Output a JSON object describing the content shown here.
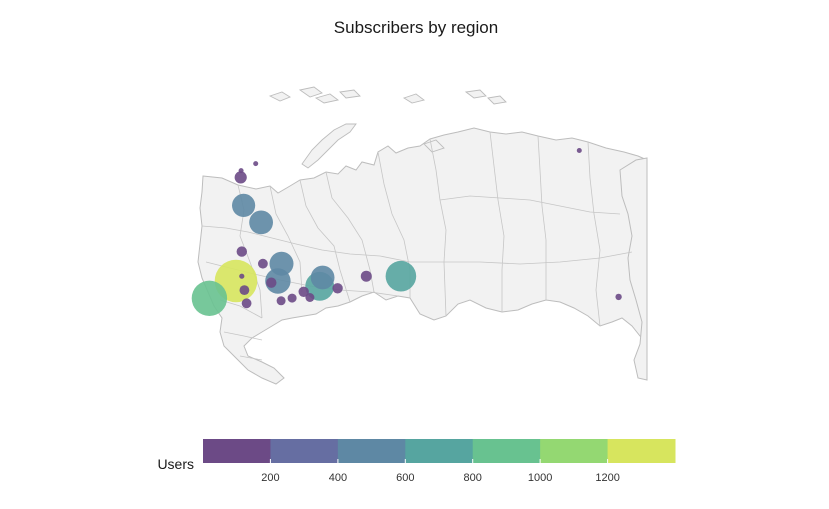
{
  "title": "Subscribers by region",
  "legend": {
    "title": "Users",
    "ticks": [
      "200",
      "400",
      "600",
      "800",
      "1000",
      "1200"
    ],
    "colors": [
      "#6c4a86",
      "#666ea2",
      "#5e88a4",
      "#56a5a0",
      "#68c290",
      "#94d872",
      "#d7e55e"
    ]
  },
  "chart_data": {
    "type": "bubble-map",
    "title": "Subscribers by region",
    "color_scale": {
      "name": "Users",
      "min": 0,
      "max": 1400,
      "breaks": [
        200,
        400,
        600,
        800,
        1000,
        1200
      ],
      "palette": "viridis"
    },
    "points": [
      {
        "lon": 37.6,
        "lat": 55.8,
        "value": 1350
      },
      {
        "lon": 30.3,
        "lat": 59.9,
        "value": 930
      },
      {
        "lon": 82.9,
        "lat": 55.0,
        "value": 700
      },
      {
        "lon": 60.6,
        "lat": 56.8,
        "value": 620
      },
      {
        "lon": 49.1,
        "lat": 55.8,
        "value": 480
      },
      {
        "lon": 50.1,
        "lat": 53.2,
        "value": 430
      },
      {
        "lon": 61.4,
        "lat": 55.2,
        "value": 420
      },
      {
        "lon": 39.7,
        "lat": 47.2,
        "value": 400
      },
      {
        "lon": 44.5,
        "lat": 48.7,
        "value": 420
      },
      {
        "lon": 38.9,
        "lat": 45.0,
        "value": 110
      },
      {
        "lon": 73.4,
        "lat": 55.0,
        "value": 90
      },
      {
        "lon": 65.5,
        "lat": 57.2,
        "value": 80
      },
      {
        "lon": 40.5,
        "lat": 64.5,
        "value": 70
      },
      {
        "lon": 39.9,
        "lat": 57.6,
        "value": 70
      },
      {
        "lon": 56.2,
        "lat": 58.0,
        "value": 80
      },
      {
        "lon": 57.9,
        "lat": 59.6,
        "value": 60
      },
      {
        "lon": 50.0,
        "lat": 66.5,
        "value": 60
      },
      {
        "lon": 53.0,
        "lat": 67.6,
        "value": 60
      },
      {
        "lon": 39.2,
        "lat": 51.7,
        "value": 80
      },
      {
        "lon": 47.3,
        "lat": 56.1,
        "value": 80
      },
      {
        "lon": 45.0,
        "lat": 53.2,
        "value": 70
      },
      {
        "lon": 142.7,
        "lat": 59.4,
        "value": 30
      },
      {
        "lon": 39.2,
        "lat": 55.0,
        "value": 20
      },
      {
        "lon": 43.0,
        "lat": 44.0,
        "value": 15
      },
      {
        "lon": 131.9,
        "lat": 43.1,
        "value": 10
      },
      {
        "lon": 39.0,
        "lat": 44.5,
        "value": 10
      }
    ]
  }
}
